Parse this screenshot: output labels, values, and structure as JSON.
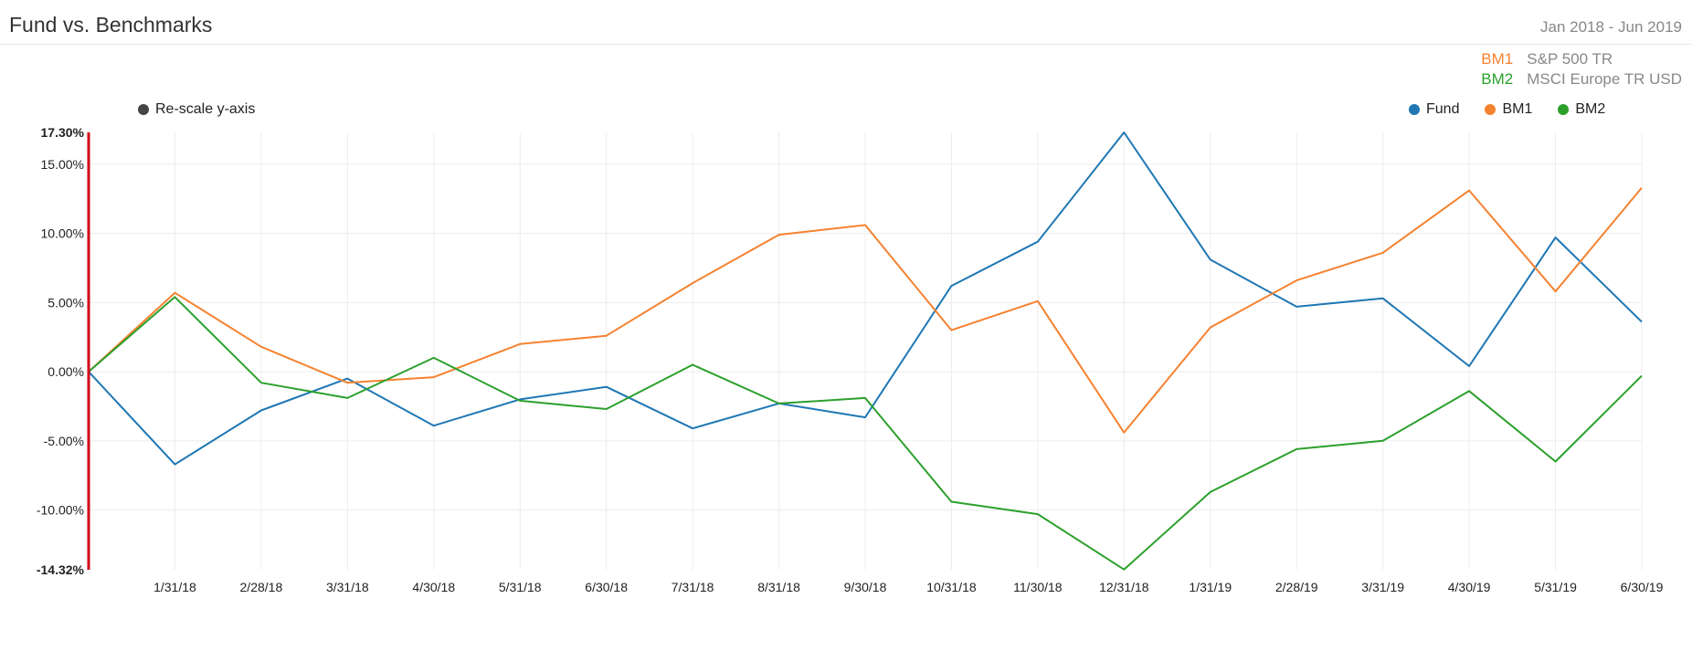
{
  "header": {
    "title": "Fund vs. Benchmarks",
    "date_range": "Jan 2018 - Jun 2019"
  },
  "benchmarks": [
    {
      "code": "BM1",
      "name": "S&P 500 TR",
      "color": "#f58230"
    },
    {
      "code": "BM2",
      "name": "MSCI Europe TR USD",
      "color": "#2ca02c"
    }
  ],
  "controls": {
    "rescale_label": "Re-scale y-axis",
    "rescale_dot_color": "#444444"
  },
  "legend": [
    {
      "label": "Fund",
      "color": "#1f77b4"
    },
    {
      "label": "BM1",
      "color": "#f58230"
    },
    {
      "label": "BM2",
      "color": "#2ca02c"
    }
  ],
  "chart_data": {
    "type": "line",
    "x": [
      "",
      "1/31/18",
      "2/28/18",
      "3/31/18",
      "4/30/18",
      "5/31/18",
      "6/30/18",
      "7/31/18",
      "8/31/18",
      "9/30/18",
      "10/31/18",
      "11/30/18",
      "12/31/18",
      "1/31/19",
      "2/28/19",
      "3/31/19",
      "4/30/19",
      "5/31/19",
      "6/30/19"
    ],
    "y_ticks": [
      {
        "value": 17.3,
        "label": "17.30%",
        "bold": true
      },
      {
        "value": 15,
        "label": "15.00%"
      },
      {
        "value": 10,
        "label": "10.00%"
      },
      {
        "value": 5,
        "label": "5.00%"
      },
      {
        "value": 0,
        "label": "0.00%"
      },
      {
        "value": -5,
        "label": "-5.00%"
      },
      {
        "value": -10,
        "label": "-10.00%"
      },
      {
        "value": -14.32,
        "label": "-14.32%",
        "bold": true
      }
    ],
    "ylim": [
      -14.32,
      17.3
    ],
    "grid": true,
    "axis_line_color": "#d0021b",
    "series": [
      {
        "name": "Fund",
        "color": "#1f77b4",
        "values": [
          0,
          -6.7,
          -2.8,
          -0.5,
          -3.9,
          -2.0,
          -1.1,
          -4.1,
          -2.3,
          -3.3,
          6.2,
          9.4,
          17.3,
          8.1,
          4.7,
          5.3,
          0.4,
          9.7,
          3.6
        ]
      },
      {
        "name": "BM1",
        "color": "#f58230",
        "values": [
          0,
          5.7,
          1.8,
          -0.8,
          -0.4,
          2.0,
          2.6,
          6.4,
          9.9,
          10.6,
          3.0,
          5.1,
          -4.4,
          3.2,
          6.6,
          8.6,
          13.1,
          5.8,
          13.3
        ]
      },
      {
        "name": "BM2",
        "color": "#2ca02c",
        "values": [
          0,
          5.4,
          -0.8,
          -1.9,
          1.0,
          -2.1,
          -2.7,
          0.5,
          -2.3,
          -1.9,
          -9.4,
          -10.3,
          -14.3,
          -8.7,
          -5.6,
          -5.0,
          -1.4,
          -6.5,
          -0.3
        ]
      }
    ]
  }
}
